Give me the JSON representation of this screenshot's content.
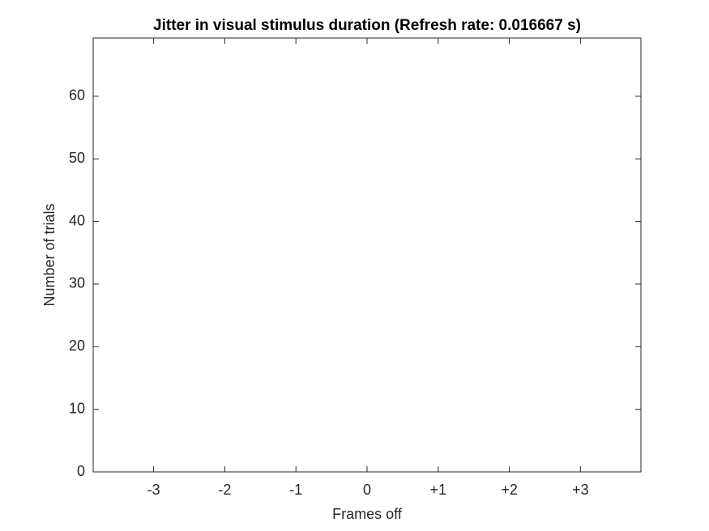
{
  "chart_data": {
    "type": "bar",
    "title": "Jitter in visual stimulus duration (Refresh rate: 0.016667 s)",
    "xlabel": "Frames off",
    "ylabel": "Number of trials",
    "x": [
      -3,
      -2,
      -1,
      0,
      1,
      2,
      3
    ],
    "values": [
      0,
      0,
      0,
      0,
      0,
      0,
      0
    ],
    "color": "#0072bd",
    "xlim": [
      -3.85,
      3.85
    ],
    "xticks": [
      -3,
      -2,
      -1,
      0,
      {
        "value": 1,
        "label": "+1"
      },
      {
        "value": 2,
        "label": "+2"
      },
      {
        "value": 3,
        "label": "+3"
      }
    ],
    "ylim": [
      0,
      69.3
    ],
    "yticks": [
      0,
      10,
      20,
      30,
      40,
      50,
      60
    ],
    "grid": false
  }
}
